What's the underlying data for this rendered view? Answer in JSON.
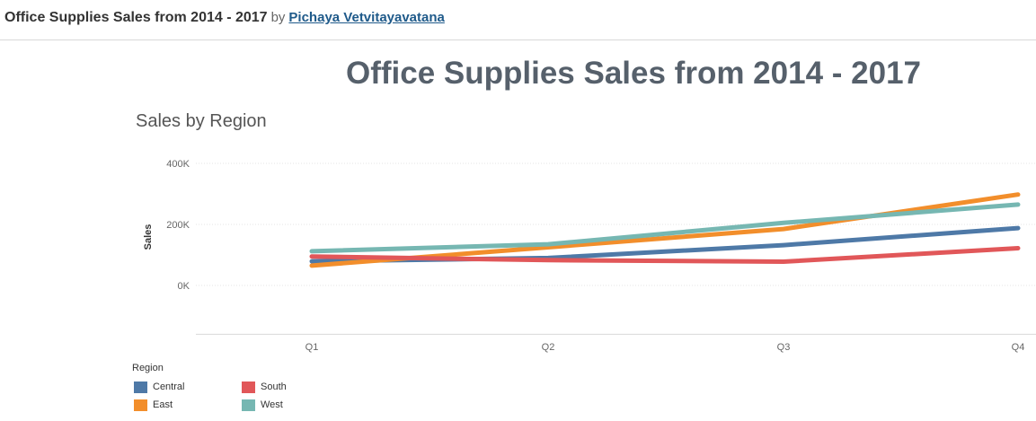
{
  "header": {
    "title": "Office Supplies Sales from 2014 - 2017",
    "by": "by",
    "author": "Pichaya Vetvitayavatana"
  },
  "dashboard": {
    "title": "Office Supplies Sales from 2014 - 2017",
    "sheet_title": "Sales by Region"
  },
  "chart_data": {
    "type": "line",
    "title": "Sales by Region",
    "xlabel": "",
    "ylabel": "Sales",
    "categories": [
      "Q1",
      "Q2",
      "Q3",
      "Q4"
    ],
    "ylim": [
      -160000,
      400000
    ],
    "yticks": [
      0,
      200000,
      400000
    ],
    "ytick_labels": [
      "0K",
      "200K",
      "400K"
    ],
    "grid": true,
    "legend_title": "Region",
    "legend_position": "bottom-left",
    "series": [
      {
        "name": "Central",
        "color": "#4e79a7",
        "values": [
          79000,
          90000,
          132000,
          188000
        ]
      },
      {
        "name": "East",
        "color": "#f28e2b",
        "values": [
          65000,
          125000,
          185000,
          298000
        ]
      },
      {
        "name": "South",
        "color": "#e15759",
        "values": [
          95000,
          83000,
          78000,
          122000
        ]
      },
      {
        "name": "West",
        "color": "#76b7b2",
        "values": [
          112000,
          135000,
          205000,
          265000
        ]
      }
    ]
  }
}
